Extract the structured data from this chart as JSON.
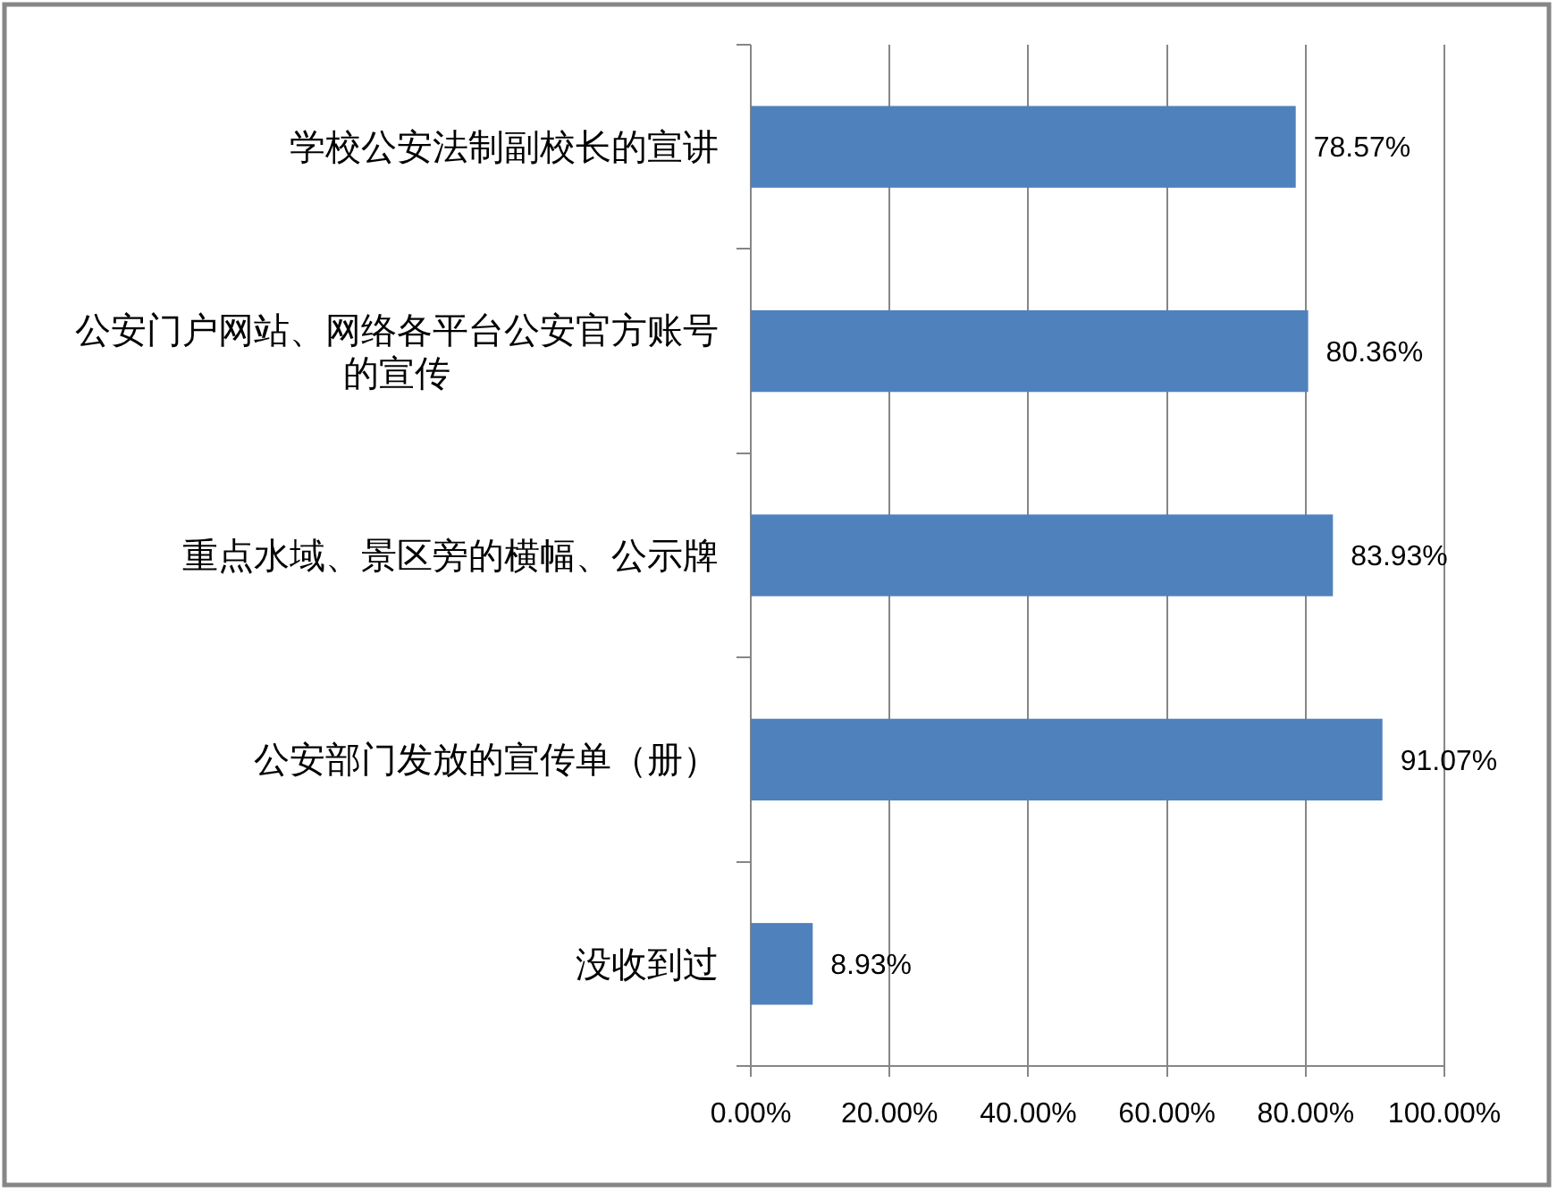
{
  "chart_data": {
    "type": "bar",
    "orientation": "horizontal",
    "categories": [
      "学校公安法制副校长的宣讲",
      "公安门户网站、网络各平台公安官方账号的宣传",
      "重点水域、景区旁的横幅、公示牌",
      "公安部门发放的宣传单（册）",
      "没收到过"
    ],
    "values": [
      78.57,
      80.36,
      83.93,
      91.07,
      8.93
    ],
    "value_labels": [
      "78.57%",
      "80.36%",
      "83.93%",
      "91.07%",
      "8.93%"
    ],
    "color": "#4f81bd",
    "xlim": [
      0,
      100
    ],
    "xticks": [
      {
        "value": 0,
        "label": "0.00%"
      },
      {
        "value": 20,
        "label": "20.00%"
      },
      {
        "value": 40,
        "label": "40.00%"
      },
      {
        "value": 60,
        "label": "60.00%"
      },
      {
        "value": 80,
        "label": "80.00%"
      },
      {
        "value": 100,
        "label": "100.00%"
      }
    ],
    "grid": "x"
  }
}
